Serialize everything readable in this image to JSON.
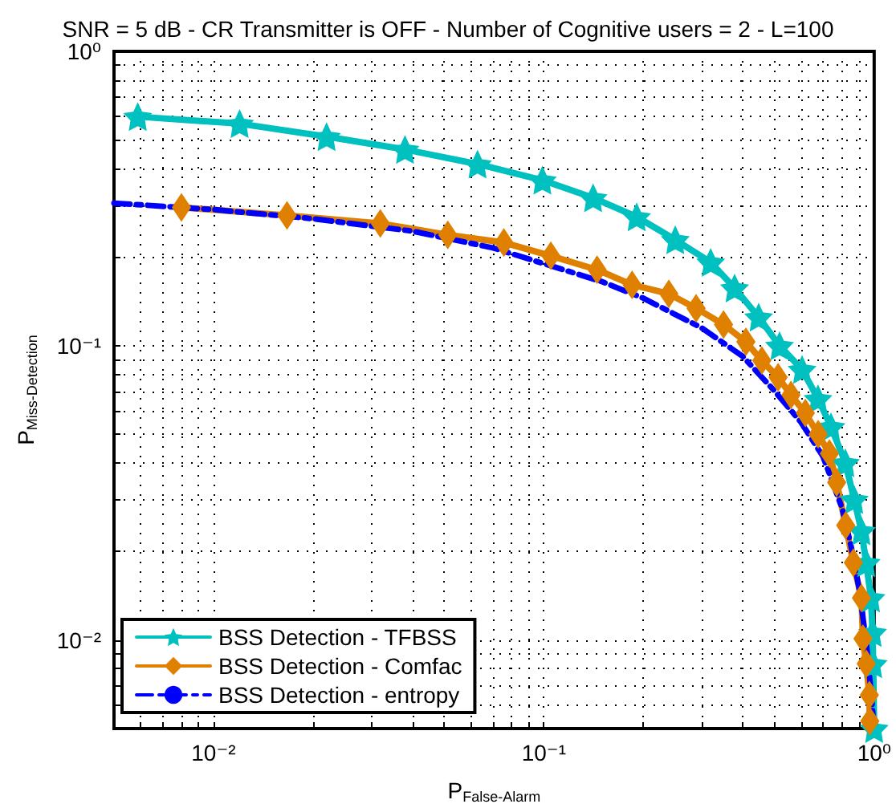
{
  "chart_data": {
    "type": "line",
    "title": "SNR = 5 dB - CR Transmitter is OFF - Number of Cognitive users = 2 - L=100",
    "xlabel": "P$_{False-Alarm}$",
    "ylabel": "P$_{Miss-Detection}$",
    "log": "xy",
    "grid": true,
    "legend": "bottom left",
    "xlim": [
      0.005,
      1
    ],
    "ylim": [
      0.005,
      1
    ],
    "xticks": [
      {
        "value": 0.01,
        "label": "10⁻²"
      },
      {
        "value": 0.1,
        "label": "10⁻¹"
      },
      {
        "value": 1,
        "label": "10⁰"
      }
    ],
    "yticks": [
      {
        "value": 0.01,
        "label": "10⁻²"
      },
      {
        "value": 0.1,
        "label": "10⁻¹"
      },
      {
        "value": 1,
        "label": "10⁰"
      }
    ],
    "series": [
      {
        "name": "BSS Detection - TFBSS",
        "color": "#00c0c0",
        "marker": "star",
        "line_style": "solid",
        "x": [
          0.0059,
          0.012,
          0.022,
          0.038,
          0.063,
          0.099,
          0.141,
          0.191,
          0.25,
          0.32,
          0.378,
          0.447,
          0.517,
          0.605,
          0.676,
          0.74,
          0.818,
          0.87,
          0.915,
          0.946,
          0.978,
          0.989,
          0.993,
          0.996,
          1
        ],
        "values": [
          0.6,
          0.568,
          0.513,
          0.464,
          0.414,
          0.365,
          0.318,
          0.274,
          0.229,
          0.192,
          0.157,
          0.125,
          0.1,
          0.083,
          0.066,
          0.053,
          0.04,
          0.03,
          0.0235,
          0.0183,
          0.0139,
          0.0106,
          0.0083,
          null,
          0.005
        ]
      },
      {
        "name": "BSS Detection - Comfac",
        "color": "#e08000",
        "marker": "diamond",
        "line_style": "solid",
        "x": [
          0.008,
          0.0167,
          0.032,
          0.0512,
          0.0757,
          0.105,
          0.145,
          0.185,
          0.239,
          0.289,
          0.35,
          0.409,
          0.457,
          0.512,
          0.56,
          0.619,
          0.677,
          0.732,
          0.77,
          0.82,
          0.865,
          0.915,
          0.925,
          0.946,
          0.967,
          0.97
        ],
        "values": [
          0.295,
          0.277,
          0.26,
          0.238,
          0.224,
          0.202,
          0.181,
          0.161,
          0.15,
          0.134,
          0.118,
          0.103,
          0.089,
          0.078,
          0.068,
          0.059,
          0.05,
          0.043,
          0.0343,
          0.0245,
          0.0183,
          0.0139,
          0.0101,
          0.0083,
          0.0065,
          0.0053
        ]
      },
      {
        "name": "BSS Detection - entropy",
        "color": "#0000ff",
        "marker": "none",
        "line_style": "dashed",
        "x": [
          0.005,
          0.01,
          0.02,
          0.04,
          0.07,
          0.1,
          0.15,
          0.2,
          0.3,
          0.4,
          0.5,
          0.6,
          0.7,
          0.8,
          0.85,
          0.9,
          0.95,
          0.98,
          1
        ],
        "values": [
          0.305,
          0.29,
          0.27,
          0.245,
          0.215,
          0.19,
          0.165,
          0.145,
          0.115,
          0.092,
          0.07,
          0.055,
          0.042,
          0.028,
          0.021,
          0.015,
          0.0095,
          0.0065,
          0.005
        ]
      }
    ]
  }
}
